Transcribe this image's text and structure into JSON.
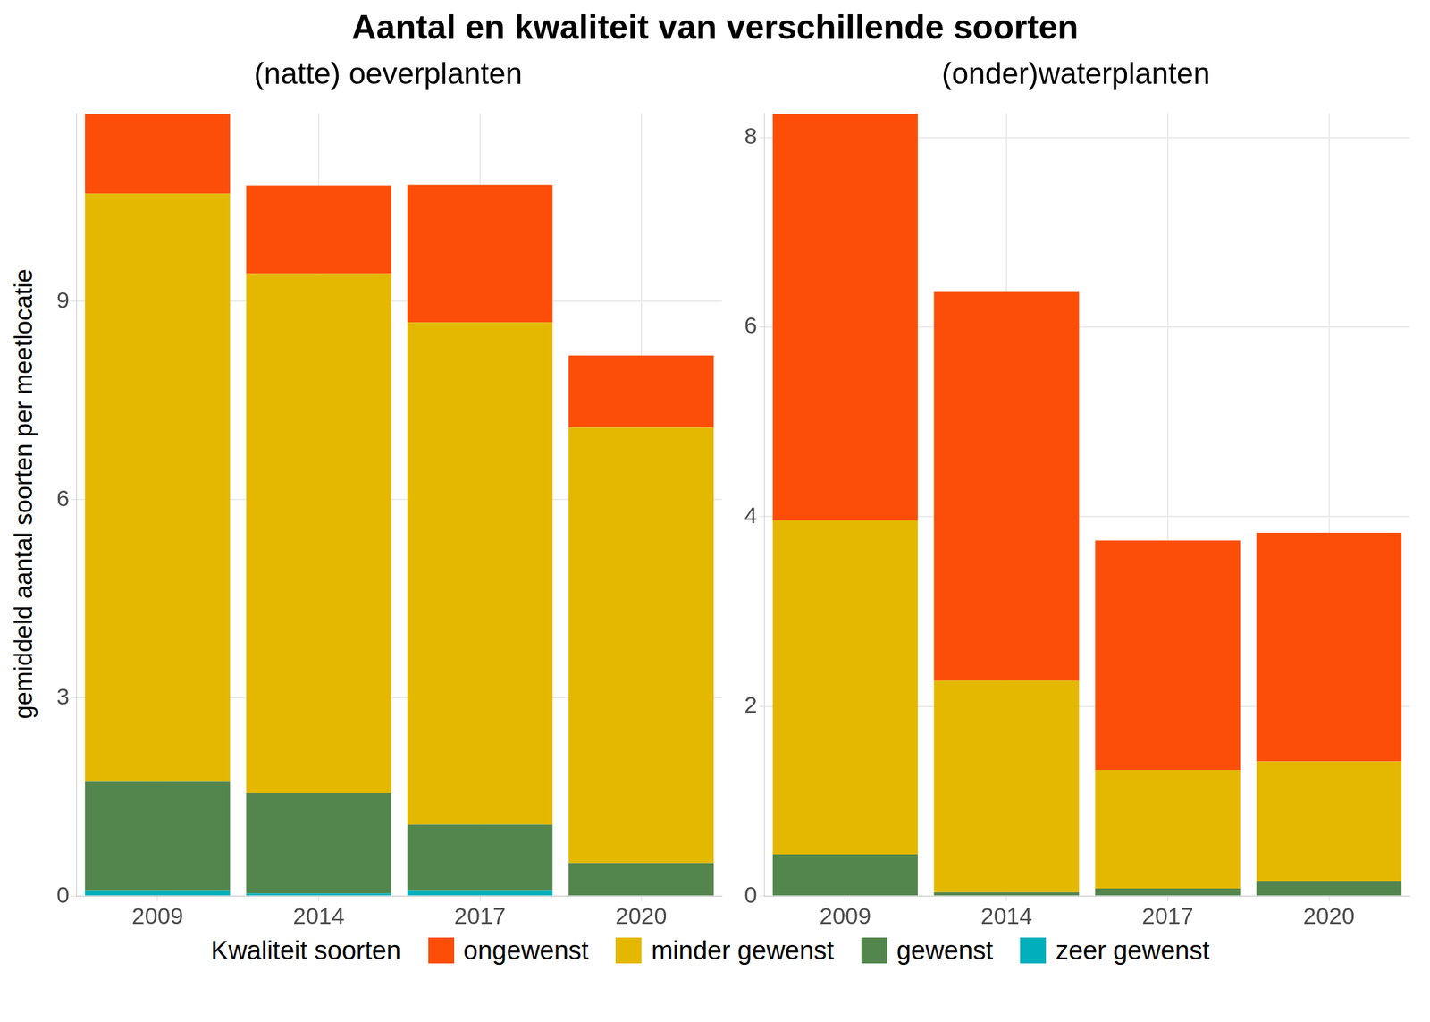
{
  "title": "Aantal en kwaliteit van verschillende soorten",
  "y_label": "gemiddeld aantal soorten per meetlocatie",
  "legend_title": "Kwaliteit soorten",
  "chart_data": [
    {
      "type": "bar",
      "subtitle": "(natte) oeverplanten",
      "stacked": true,
      "grid": true,
      "legend": "bottom",
      "categories": [
        "2009",
        "2014",
        "2017",
        "2020"
      ],
      "ylim": [
        0,
        11.84
      ],
      "yticks": [
        0,
        3,
        6,
        9
      ],
      "series": [
        {
          "name": "ongewenst",
          "color": "#FC4E08",
          "values": [
            1.21,
            1.33,
            2.08,
            1.09
          ]
        },
        {
          "name": "minder gewenst",
          "color": "#E5B800",
          "values": [
            8.9,
            7.86,
            7.6,
            6.59
          ]
        },
        {
          "name": "gewenst",
          "color": "#53864D",
          "values": [
            1.64,
            1.52,
            0.99,
            0.5
          ]
        },
        {
          "name": "zeer gewenst",
          "color": "#00AFBB",
          "values": [
            0.09,
            0.04,
            0.09,
            0
          ]
        }
      ]
    },
    {
      "type": "bar",
      "subtitle": "(onder)waterplanten",
      "stacked": true,
      "grid": true,
      "legend": "bottom",
      "categories": [
        "2009",
        "2014",
        "2017",
        "2020"
      ],
      "ylim": [
        0,
        8.25
      ],
      "yticks": [
        0,
        2,
        4,
        6,
        8
      ],
      "series": [
        {
          "name": "ongewenst",
          "color": "#FC4E08",
          "values": [
            4.29,
            4.1,
            2.42,
            2.41
          ]
        },
        {
          "name": "minder gewenst",
          "color": "#E5B800",
          "values": [
            3.52,
            2.23,
            1.25,
            1.26
          ]
        },
        {
          "name": "gewenst",
          "color": "#53864D",
          "values": [
            0.44,
            0.04,
            0.08,
            0.16
          ]
        },
        {
          "name": "zeer gewenst",
          "color": "#00AFBB",
          "values": [
            0,
            0,
            0,
            0
          ]
        }
      ]
    }
  ]
}
